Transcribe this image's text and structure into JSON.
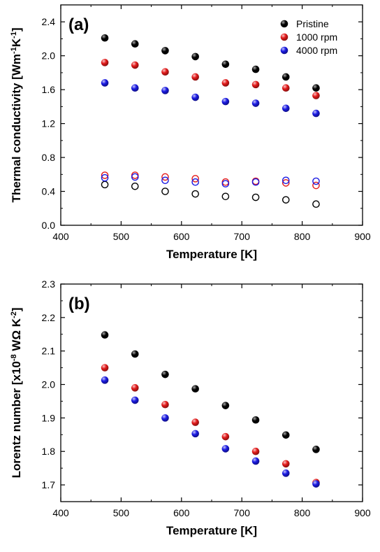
{
  "chart_data": [
    {
      "type": "scatter",
      "panel_label": "(a)",
      "xlabel": "Temperature [K]",
      "ylabel": "Thermal conductivity [Wm",
      "ylabel_sup1": "-1",
      "ylabel_mid": "K",
      "ylabel_sup2": "-1",
      "ylabel_end": "]",
      "xlim": [
        400,
        900
      ],
      "ylim": [
        0.0,
        2.6
      ],
      "xticks": [
        400,
        500,
        600,
        700,
        800,
        900
      ],
      "xtick_labels": [
        "400",
        "500",
        "600",
        "700",
        "800",
        "900"
      ],
      "yticks": [
        0.0,
        0.4,
        0.8,
        1.2,
        1.6,
        2.0,
        2.4
      ],
      "ytick_labels": [
        "0.0",
        "0.4",
        "0.8",
        "1.2",
        "1.6",
        "2.0",
        "2.4"
      ],
      "legend_position": "top-right",
      "x": [
        473,
        523,
        573,
        623,
        673,
        723,
        773,
        823
      ],
      "series": [
        {
          "name": "Pristine",
          "color": "#000000",
          "filled": true,
          "values": [
            2.21,
            2.14,
            2.06,
            1.99,
            1.9,
            1.84,
            1.75,
            1.62
          ]
        },
        {
          "name": "1000 rpm",
          "color": "#e31a1a",
          "filled": true,
          "values": [
            1.92,
            1.89,
            1.81,
            1.75,
            1.68,
            1.66,
            1.62,
            1.53
          ]
        },
        {
          "name": "4000 rpm",
          "color": "#1a1ae3",
          "filled": true,
          "values": [
            1.68,
            1.62,
            1.59,
            1.51,
            1.46,
            1.44,
            1.38,
            1.32
          ]
        },
        {
          "name": "",
          "color": "#000000",
          "filled": false,
          "values": [
            0.48,
            0.46,
            0.4,
            0.37,
            0.34,
            0.33,
            0.3,
            0.25
          ]
        },
        {
          "name": "",
          "color": "#e31a1a",
          "filled": false,
          "values": [
            0.59,
            0.59,
            0.57,
            0.55,
            0.51,
            0.52,
            0.5,
            0.47
          ]
        },
        {
          "name": "",
          "color": "#1a1ae3",
          "filled": false,
          "values": [
            0.56,
            0.57,
            0.53,
            0.51,
            0.49,
            0.51,
            0.53,
            0.52
          ]
        }
      ]
    },
    {
      "type": "scatter",
      "panel_label": "(b)",
      "xlabel": "Temperature [K]",
      "ylabel": "Lorentz number [x10",
      "ylabel_sup1": "-8",
      "ylabel_mid": " WΩ K",
      "ylabel_sup2": "-2",
      "ylabel_end": "]",
      "xlim": [
        400,
        900
      ],
      "ylim": [
        1.65,
        2.3
      ],
      "xticks": [
        400,
        500,
        600,
        700,
        800,
        900
      ],
      "xtick_labels": [
        "400",
        "500",
        "600",
        "700",
        "800",
        "900"
      ],
      "yticks": [
        1.7,
        1.8,
        1.9,
        2.0,
        2.1,
        2.2,
        2.3
      ],
      "ytick_labels": [
        "1.7",
        "1.8",
        "1.9",
        "2.0",
        "2.1",
        "2.2",
        "2.3"
      ],
      "x": [
        473,
        523,
        573,
        623,
        673,
        723,
        773,
        823
      ],
      "series": [
        {
          "name": "Pristine",
          "color": "#000000",
          "filled": true,
          "values": [
            2.148,
            2.091,
            2.03,
            1.987,
            1.937,
            1.894,
            1.849,
            1.806
          ]
        },
        {
          "name": "1000 rpm",
          "color": "#e31a1a",
          "filled": true,
          "values": [
            2.05,
            1.99,
            1.94,
            1.887,
            1.844,
            1.8,
            1.763,
            1.707
          ]
        },
        {
          "name": "4000 rpm",
          "color": "#1a1ae3",
          "filled": true,
          "values": [
            2.013,
            1.953,
            1.9,
            1.853,
            1.808,
            1.771,
            1.735,
            1.703
          ]
        }
      ]
    }
  ]
}
